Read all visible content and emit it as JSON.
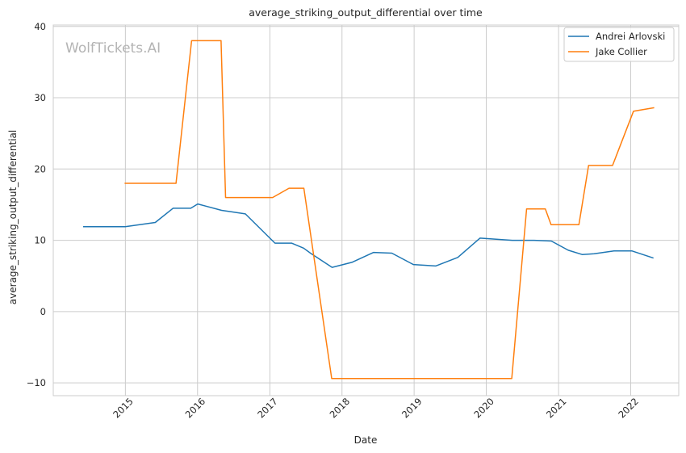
{
  "chart_data": {
    "type": "line",
    "title": "average_striking_output_differential over time",
    "xlabel": "Date",
    "ylabel": "average_striking_output_differential",
    "watermark": "WolfTickets.AI",
    "xlim": [
      "2014-01-01",
      "2022-09-01"
    ],
    "ylim": [
      -11.8,
      40.2
    ],
    "x_ticks": [
      "2015",
      "2016",
      "2017",
      "2018",
      "2019",
      "2020",
      "2021",
      "2022"
    ],
    "y_ticks": [
      -10,
      0,
      10,
      20,
      30,
      40
    ],
    "y_tick_labels": [
      "−10",
      "0",
      "10",
      "20",
      "30",
      "40"
    ],
    "grid": true,
    "legend_position": "top-right",
    "series": [
      {
        "name": "Andrei Arlovski",
        "color": "#1f77b4",
        "points": [
          [
            "2014-06-01",
            11.9
          ],
          [
            "2014-12-31",
            11.9
          ],
          [
            "2015-06-01",
            12.5
          ],
          [
            "2015-08-30",
            14.5
          ],
          [
            "2015-11-28",
            14.5
          ],
          [
            "2016-01-02",
            15.1
          ],
          [
            "2016-05-02",
            14.2
          ],
          [
            "2016-06-20",
            14.0
          ],
          [
            "2016-08-30",
            13.7
          ],
          [
            "2017-01-27",
            9.6
          ],
          [
            "2017-04-21",
            9.6
          ],
          [
            "2017-06-21",
            8.9
          ],
          [
            "2017-07-30",
            8.1
          ],
          [
            "2017-11-12",
            6.2
          ],
          [
            "2018-02-20",
            6.9
          ],
          [
            "2018-06-10",
            8.3
          ],
          [
            "2018-09-10",
            8.2
          ],
          [
            "2018-12-28",
            6.6
          ],
          [
            "2019-04-20",
            6.4
          ],
          [
            "2019-08-10",
            7.6
          ],
          [
            "2019-11-30",
            10.3
          ],
          [
            "2020-05-12",
            10.0
          ],
          [
            "2020-08-30",
            10.0
          ],
          [
            "2020-11-25",
            9.9
          ],
          [
            "2021-02-19",
            8.6
          ],
          [
            "2021-04-30",
            8.0
          ],
          [
            "2021-06-30",
            8.1
          ],
          [
            "2021-10-08",
            8.5
          ],
          [
            "2022-01-08",
            8.5
          ],
          [
            "2022-04-26",
            7.5
          ]
        ]
      },
      {
        "name": "Jake Collier",
        "color": "#ff7f0e",
        "points": [
          [
            "2014-12-28",
            18.0
          ],
          [
            "2015-09-14",
            18.0
          ],
          [
            "2015-12-02",
            38.0
          ],
          [
            "2016-04-29",
            38.0
          ],
          [
            "2016-05-22",
            16.0
          ],
          [
            "2017-01-15",
            16.0
          ],
          [
            "2017-04-08",
            17.3
          ],
          [
            "2017-06-22",
            17.3
          ],
          [
            "2017-11-10",
            -9.4
          ],
          [
            "2020-05-09",
            -9.4
          ],
          [
            "2020-07-23",
            14.4
          ],
          [
            "2020-10-26",
            14.4
          ],
          [
            "2020-11-24",
            12.2
          ],
          [
            "2021-04-14",
            12.2
          ],
          [
            "2021-06-02",
            20.5
          ],
          [
            "2021-10-01",
            20.5
          ],
          [
            "2022-01-15",
            28.1
          ],
          [
            "2022-04-30",
            28.6
          ]
        ]
      }
    ]
  }
}
